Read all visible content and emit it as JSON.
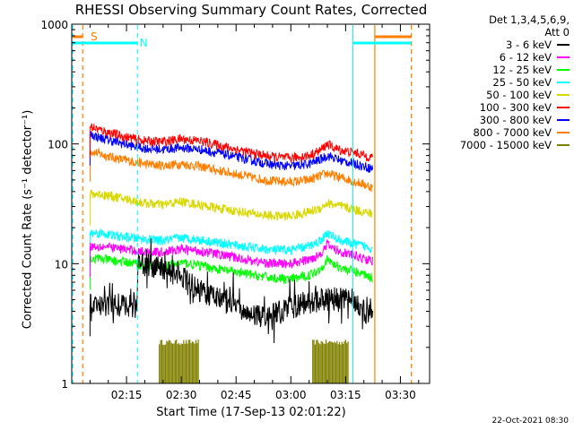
{
  "title": "RHESSI Observing Summary Count Rates, Corrected",
  "timestamp": "22-Oct-2021 08:30",
  "legend": {
    "header_line1": "Det 1,3,4,5,6,9,",
    "header_line2": "Att 0",
    "entries": [
      {
        "label": "3 - 6 keV",
        "color": "#000000"
      },
      {
        "label": "6 - 12 keV",
        "color": "#ff00ff"
      },
      {
        "label": "12 - 25 keV",
        "color": "#00ff00"
      },
      {
        "label": "25 - 50 keV",
        "color": "#00ffff"
      },
      {
        "label": "50 - 100 keV",
        "color": "#d8d800"
      },
      {
        "label": "100 - 300 keV",
        "color": "#ff0000"
      },
      {
        "label": "300 - 800 keV",
        "color": "#0000ff"
      },
      {
        "label": "800 - 7000 keV",
        "color": "#ff7f00"
      },
      {
        "label": "7000 - 15000 keV",
        "color": "#808000"
      }
    ]
  },
  "chart_data": {
    "type": "line",
    "title": "RHESSI Observing Summary Count Rates, Corrected",
    "xlabel": "Start Time (17-Sep-13 02:01:22)",
    "ylabel": "Corrected Count Rate (s⁻¹ detector⁻¹)",
    "y_scale": "log",
    "ylim": [
      1,
      1000
    ],
    "y_ticks": [
      "1",
      "10",
      "100",
      "1000"
    ],
    "xlim_minutes_after_0200": [
      0,
      98
    ],
    "x_ticks": [
      "02:15",
      "02:30",
      "02:45",
      "03:00",
      "03:15",
      "03:30"
    ],
    "x_tick_minutes_after_0200": [
      15,
      30,
      45,
      60,
      75,
      90
    ],
    "grid": false,
    "legend_position": "right",
    "flags": {
      "S_label": "S",
      "N_label": "N",
      "saa_color": "#ff7f00",
      "night_color": "#00ffff",
      "data_start_minute": 5,
      "saa_vertical_minutes": [
        3.0,
        83.0,
        93.0
      ],
      "night_vertical_minutes": [
        0.3,
        18.0,
        77.0,
        93.0
      ],
      "saa_bar_intervals": [
        [
          0.3,
          3.0
        ],
        [
          83.0,
          93.0
        ]
      ],
      "night_bar_intervals": [
        [
          0.3,
          18.0
        ],
        [
          77.0,
          93.0
        ]
      ]
    },
    "series": [
      {
        "name": "3 - 6 keV",
        "color": "#000000",
        "x": [
          5,
          8,
          10,
          12,
          14,
          16,
          17.9,
          18.2,
          22,
          26,
          30,
          32,
          35,
          38,
          41,
          44,
          47,
          50,
          53,
          56,
          59,
          62,
          65,
          68,
          71,
          74,
          77,
          80,
          82.5
        ],
        "y": [
          4.5,
          4.5,
          4.6,
          4.5,
          4.4,
          4.5,
          4.4,
          10,
          9.5,
          9,
          8,
          7,
          6,
          5.5,
          5.2,
          4.7,
          4.2,
          3.6,
          3.5,
          3.8,
          4.2,
          4.5,
          4.7,
          5.0,
          5.0,
          5.2,
          5.0,
          4.0,
          3.8
        ]
      },
      {
        "name": "6 - 12 keV",
        "color": "#ff00ff",
        "x": [
          5,
          8,
          12,
          16,
          20,
          25,
          30,
          35,
          40,
          45,
          50,
          55,
          60,
          65,
          68,
          70,
          72,
          74,
          76,
          78,
          80,
          82.5
        ],
        "y": [
          14,
          14,
          13.5,
          13,
          12.5,
          12.5,
          13.2,
          12.8,
          12,
          11.2,
          10.5,
          10,
          10,
          10.8,
          12,
          14.5,
          13.2,
          12.5,
          12,
          11.5,
          11,
          10.5
        ]
      },
      {
        "name": "12 - 25 keV",
        "color": "#00ff00",
        "x": [
          5,
          8,
          12,
          16,
          20,
          25,
          30,
          35,
          40,
          45,
          50,
          55,
          60,
          65,
          68,
          70,
          72,
          74,
          76,
          78,
          80,
          82.5
        ],
        "y": [
          11,
          11,
          10.5,
          10.2,
          9.6,
          9.4,
          10.2,
          9.7,
          9,
          8.5,
          8,
          7.6,
          7.4,
          8,
          9,
          10.8,
          9.8,
          9.2,
          8.8,
          8.5,
          8.2,
          7.6
        ]
      },
      {
        "name": "25 - 50 keV",
        "color": "#00ffff",
        "x": [
          5,
          8,
          12,
          16,
          20,
          25,
          30,
          35,
          40,
          45,
          50,
          55,
          60,
          65,
          68,
          70,
          72,
          74,
          76,
          78,
          80,
          82.5
        ],
        "y": [
          18,
          18,
          17,
          16.5,
          16,
          15.5,
          16.5,
          15.8,
          15,
          14.2,
          13.5,
          13,
          13,
          14,
          15.5,
          18,
          16.5,
          15.5,
          15,
          14.5,
          14,
          13.5
        ]
      },
      {
        "name": "50 - 100 keV",
        "color": "#d8d800",
        "x": [
          5,
          8,
          12,
          16,
          20,
          25,
          30,
          35,
          40,
          45,
          50,
          55,
          60,
          65,
          68,
          70,
          72,
          74,
          76,
          78,
          80,
          82.5
        ],
        "y": [
          38,
          38,
          36,
          34,
          32,
          31,
          33,
          31,
          29,
          27.5,
          26,
          25,
          25,
          27,
          29,
          32,
          31,
          30,
          29,
          28,
          27,
          26
        ]
      },
      {
        "name": "100 - 300 keV",
        "color": "#ff0000",
        "x": [
          5,
          8,
          12,
          16,
          20,
          25,
          30,
          35,
          40,
          45,
          50,
          55,
          60,
          65,
          68,
          70,
          72,
          74,
          76,
          78,
          80,
          82.5
        ],
        "y": [
          140,
          130,
          120,
          112,
          106,
          104,
          110,
          106,
          98,
          90,
          83,
          78,
          76,
          80,
          88,
          100,
          92,
          88,
          86,
          84,
          80,
          77
        ]
      },
      {
        "name": "300 - 800 keV",
        "color": "#0000ff",
        "x": [
          5,
          8,
          12,
          16,
          20,
          25,
          30,
          35,
          40,
          45,
          50,
          55,
          60,
          65,
          68,
          70,
          72,
          74,
          76,
          78,
          80,
          82.5
        ],
        "y": [
          120,
          112,
          104,
          97,
          92,
          90,
          93,
          90,
          84,
          78,
          72,
          67,
          65,
          68,
          74,
          80,
          76,
          72,
          70,
          68,
          65,
          62
        ]
      },
      {
        "name": "800 - 7000 keV",
        "color": "#ff7f00",
        "x": [
          5,
          8,
          12,
          16,
          20,
          25,
          30,
          35,
          40,
          45,
          50,
          55,
          60,
          65,
          68,
          70,
          72,
          74,
          76,
          78,
          80,
          82.5
        ],
        "y": [
          88,
          82,
          76,
          72,
          68,
          66,
          68,
          65,
          60,
          56,
          52,
          49,
          48,
          50,
          54,
          57,
          54,
          52,
          50,
          48,
          46,
          43
        ]
      },
      {
        "name": "7000 - 15000 keV",
        "color": "#808000",
        "x": [
          24,
          25,
          26,
          27,
          28,
          29,
          30,
          31,
          32,
          33,
          34,
          66,
          67,
          68,
          69,
          70,
          71,
          72,
          73,
          74,
          75
        ],
        "y": [
          2.1,
          2.1,
          2.1,
          2.1,
          2.1,
          2.1,
          2.1,
          2.1,
          2.1,
          2.1,
          2.1,
          2.1,
          2.1,
          2.1,
          2.1,
          2.1,
          2.1,
          2.1,
          2.1,
          2.1,
          2.1
        ],
        "style": "bursts"
      }
    ]
  }
}
